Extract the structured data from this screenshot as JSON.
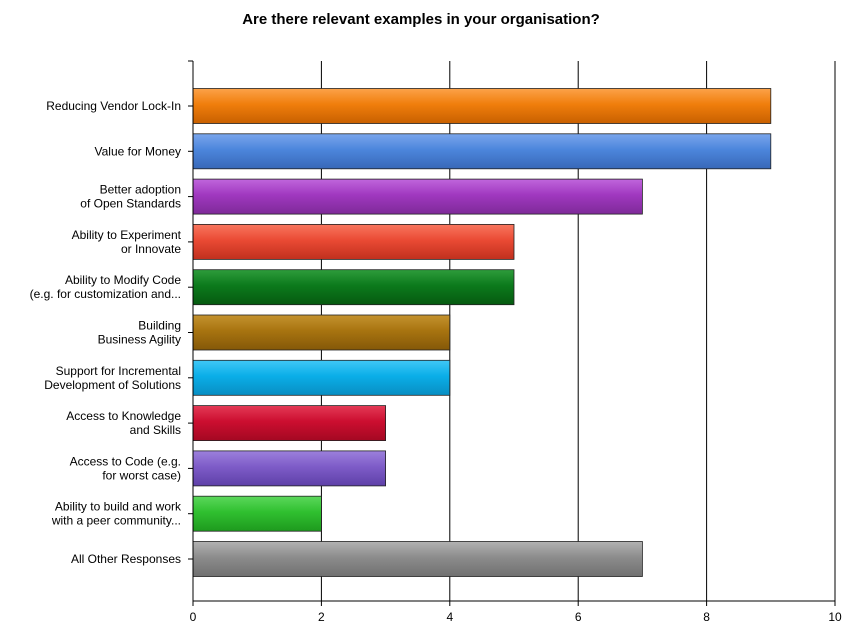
{
  "chart_data": {
    "type": "bar",
    "orientation": "horizontal",
    "title": "Are there relevant examples in your organisation?",
    "xlabel": "",
    "ylabel": "",
    "xlim": [
      0,
      10
    ],
    "xticks": [
      0,
      2,
      4,
      6,
      8,
      10
    ],
    "grid": "vertical",
    "legend": "none",
    "categories": [
      [
        "Reducing Vendor Lock-In"
      ],
      [
        "Value for Money"
      ],
      [
        "Better adoption",
        "of Open Standards"
      ],
      [
        "Ability to Experiment",
        "or Innovate"
      ],
      [
        "Ability to Modify Code",
        "(e.g. for customization and..."
      ],
      [
        "Building",
        "Business Agility"
      ],
      [
        "Support for Incremental",
        "Development of Solutions"
      ],
      [
        "Access to Knowledge",
        "and Skills"
      ],
      [
        "Access to Code (e.g.",
        "for worst case)"
      ],
      [
        "Ability to build and work",
        "with a peer community..."
      ],
      [
        "All Other Responses"
      ]
    ],
    "values": [
      9,
      9,
      7,
      5,
      5,
      4,
      4,
      3,
      3,
      2,
      7
    ],
    "colors": [
      [
        "#f07e0c",
        "#fca24a",
        "#c86000"
      ],
      [
        "#4c86dc",
        "#7aa6ec",
        "#3868b8"
      ],
      [
        "#a038c0",
        "#c066dc",
        "#7e2a98"
      ],
      [
        "#ea4a34",
        "#f8765e",
        "#c0301e"
      ],
      [
        "#0c7a1c",
        "#2e9c3c",
        "#065a10"
      ],
      [
        "#a87410",
        "#c4922e",
        "#845808"
      ],
      [
        "#0aaee8",
        "#40c8f6",
        "#088ec2"
      ],
      [
        "#cc0e30",
        "#e43a56",
        "#a40822"
      ],
      [
        "#7e5cc8",
        "#9c80dc",
        "#5e40a8"
      ],
      [
        "#30c030",
        "#5cd85c",
        "#1e9a1e"
      ],
      [
        "#8c8c8c",
        "#b2b2b2",
        "#707070"
      ]
    ]
  }
}
